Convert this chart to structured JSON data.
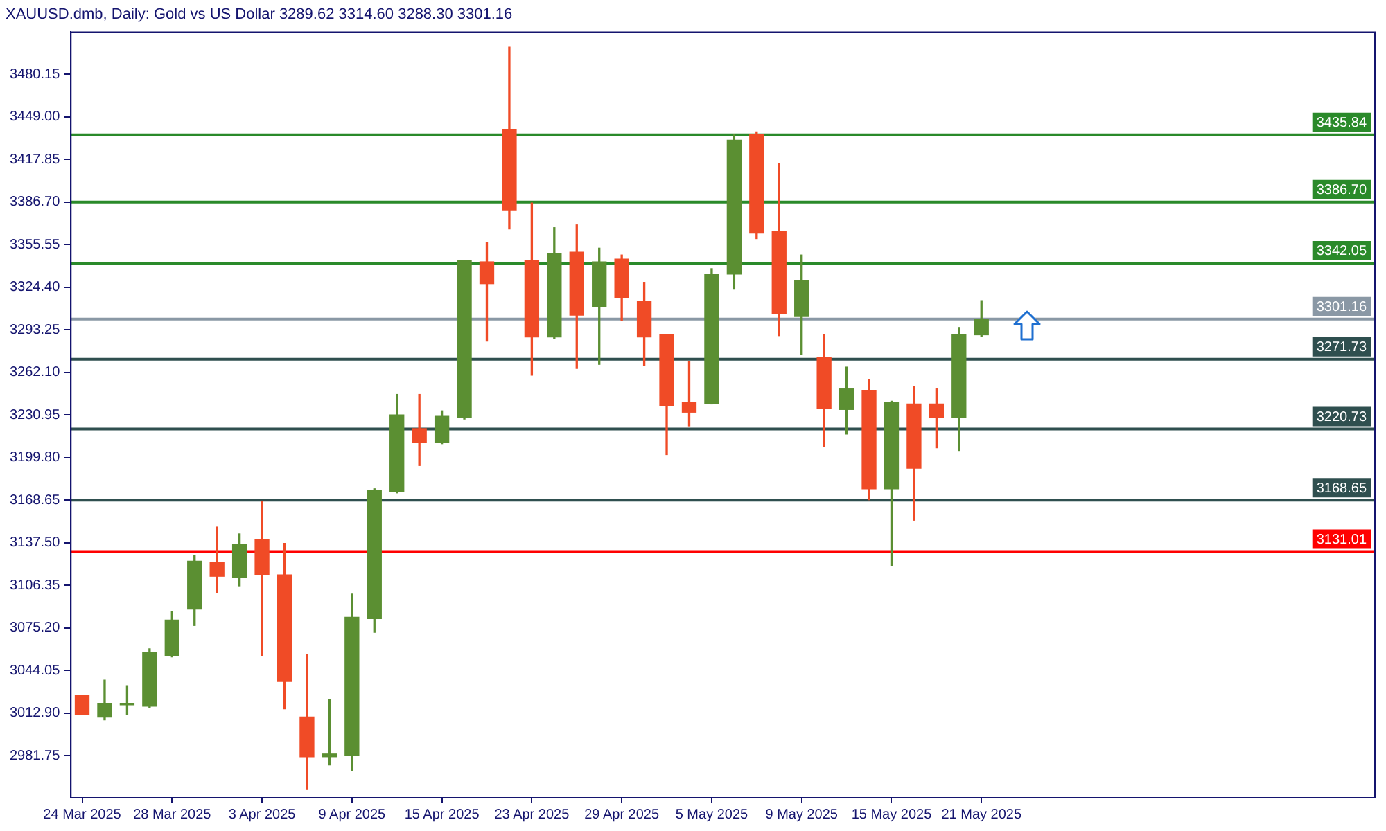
{
  "chart_data": {
    "type": "candlestick",
    "title": "XAUUSD.dmb, Daily: Gold vs US Dollar 3289.62 3314.60 3288.30 3301.16",
    "categories": [
      "24 Mar 2025",
      null,
      null,
      null,
      "28 Mar 2025",
      null,
      null,
      null,
      "3 Apr 2025",
      null,
      null,
      null,
      "9 Apr 2025",
      null,
      null,
      null,
      "15 Apr 2025",
      null,
      null,
      null,
      "23 Apr 2025",
      null,
      null,
      null,
      "29 Apr 2025",
      null,
      null,
      null,
      "5 May 2025",
      null,
      null,
      null,
      "9 May 2025",
      null,
      null,
      null,
      "15 May 2025",
      null,
      null,
      null,
      "21 May 2025"
    ],
    "ohlc": [
      [
        3026,
        3026,
        3012,
        3012
      ],
      [
        3010,
        3037,
        3008,
        3020
      ],
      [
        3019,
        3033,
        3012,
        3020
      ],
      [
        3018,
        3060,
        3017,
        3057
      ],
      [
        3055,
        3087,
        3054,
        3081
      ],
      [
        3089,
        3128,
        3077,
        3124
      ],
      [
        3123,
        3149,
        3101,
        3113
      ],
      [
        3112,
        3144,
        3106,
        3136
      ],
      [
        3140,
        3168,
        3055,
        3114
      ],
      [
        3114,
        3137,
        3016,
        3036
      ],
      [
        3010,
        3056,
        2957,
        2981
      ],
      [
        2981,
        3023,
        2975,
        2983
      ],
      [
        2982,
        3100,
        2971,
        3083
      ],
      [
        3082,
        3177,
        3072,
        3176
      ],
      [
        3175,
        3246,
        3174,
        3231
      ],
      [
        3221,
        3246,
        3194,
        3211
      ],
      [
        3211,
        3234,
        3210,
        3230
      ],
      [
        3229,
        3344,
        3228,
        3344
      ],
      [
        3343,
        3357,
        3285,
        3327
      ],
      [
        3440,
        3500,
        3367,
        3381
      ],
      [
        3344,
        3386,
        3260,
        3288
      ],
      [
        3288,
        3368,
        3287,
        3349
      ],
      [
        3350,
        3370,
        3265,
        3304
      ],
      [
        3310,
        3353,
        3268,
        3343
      ],
      [
        3345,
        3348,
        3300,
        3317
      ],
      [
        3314,
        3328,
        3267,
        3288
      ],
      [
        3290,
        3290,
        3202,
        3238
      ],
      [
        3240,
        3270,
        3223,
        3233
      ],
      [
        3239,
        3338,
        3239,
        3334
      ],
      [
        3334,
        3436,
        3323,
        3432
      ],
      [
        3436,
        3438,
        3360,
        3364
      ],
      [
        3365,
        3415,
        3289,
        3305
      ],
      [
        3303,
        3348,
        3275,
        3329
      ],
      [
        3273,
        3290,
        3208,
        3236
      ],
      [
        3235,
        3266,
        3217,
        3250
      ],
      [
        3249,
        3257,
        3169,
        3177
      ],
      [
        3177,
        3241,
        3121,
        3240
      ],
      [
        3239,
        3252,
        3154,
        3192
      ],
      [
        3239,
        3250,
        3207,
        3229
      ],
      [
        3229,
        3295,
        3205,
        3290
      ],
      [
        3289.62,
        3314.6,
        3288.3,
        3301.16
      ]
    ],
    "colors": [
      "#f04b26",
      "#5b8f32",
      "#5b8f32",
      "#5b8f32",
      "#5b8f32",
      "#5b8f32",
      "#f04b26",
      "#5b8f32",
      "#f04b26",
      "#f04b26",
      "#f04b26",
      "#5b8f32",
      "#5b8f32",
      "#5b8f32",
      "#5b8f32",
      "#f04b26",
      "#5b8f32",
      "#5b8f32",
      "#f04b26",
      "#f04b26",
      "#f04b26",
      "#5b8f32",
      "#f04b26",
      "#5b8f32",
      "#f04b26",
      "#f04b26",
      "#f04b26",
      "#f04b26",
      "#5b8f32",
      "#5b8f32",
      "#f04b26",
      "#f04b26",
      "#5b8f32",
      "#f04b26",
      "#5b8f32",
      "#f04b26",
      "#5b8f32",
      "#f04b26",
      "#f04b26",
      "#5b8f32",
      "#5b8f32"
    ],
    "ylim": [
      2951,
      3511
    ],
    "yticks": [
      {
        "value": 2981.75,
        "label": "2981.75"
      },
      {
        "value": 3012.9,
        "label": "3012.90"
      },
      {
        "value": 3044.05,
        "label": "3044.05"
      },
      {
        "value": 3075.2,
        "label": "3075.20"
      },
      {
        "value": 3106.35,
        "label": "3106.35"
      },
      {
        "value": 3137.5,
        "label": "3137.50"
      },
      {
        "value": 3168.65,
        "label": "3168.65"
      },
      {
        "value": 3199.8,
        "label": "3199.80"
      },
      {
        "value": 3230.95,
        "label": "3230.95"
      },
      {
        "value": 3262.1,
        "label": "3262.10"
      },
      {
        "value": 3293.25,
        "label": "3293.25"
      },
      {
        "value": 3324.4,
        "label": "3324.40"
      },
      {
        "value": 3355.55,
        "label": "3355.55"
      },
      {
        "value": 3386.7,
        "label": "3386.70"
      },
      {
        "value": 3417.85,
        "label": "3417.85"
      },
      {
        "value": 3449,
        "label": "3449.00"
      },
      {
        "value": 3480.15,
        "label": "3480.15"
      }
    ],
    "ref_lines": [
      {
        "axis": "y",
        "value": 3435.84,
        "label": "3435.84",
        "color": "#2a8a2a"
      },
      {
        "axis": "y",
        "value": 3386.7,
        "label": "3386.70",
        "color": "#2a8a2a"
      },
      {
        "axis": "y",
        "value": 3342.05,
        "label": "3342.05",
        "color": "#2a8a2a"
      },
      {
        "axis": "y",
        "value": 3301.16,
        "label": "3301.16",
        "color": "#8a98a5"
      },
      {
        "axis": "y",
        "value": 3271.73,
        "label": "3271.73",
        "color": "#2f4f4f"
      },
      {
        "axis": "y",
        "value": 3220.73,
        "label": "3220.73",
        "color": "#2f4f4f"
      },
      {
        "axis": "y",
        "value": 3168.65,
        "label": "3168.65",
        "color": "#2f4f4f"
      },
      {
        "axis": "y",
        "value": 3131.01,
        "label": "3131.01",
        "color": "#ff0000"
      }
    ]
  }
}
